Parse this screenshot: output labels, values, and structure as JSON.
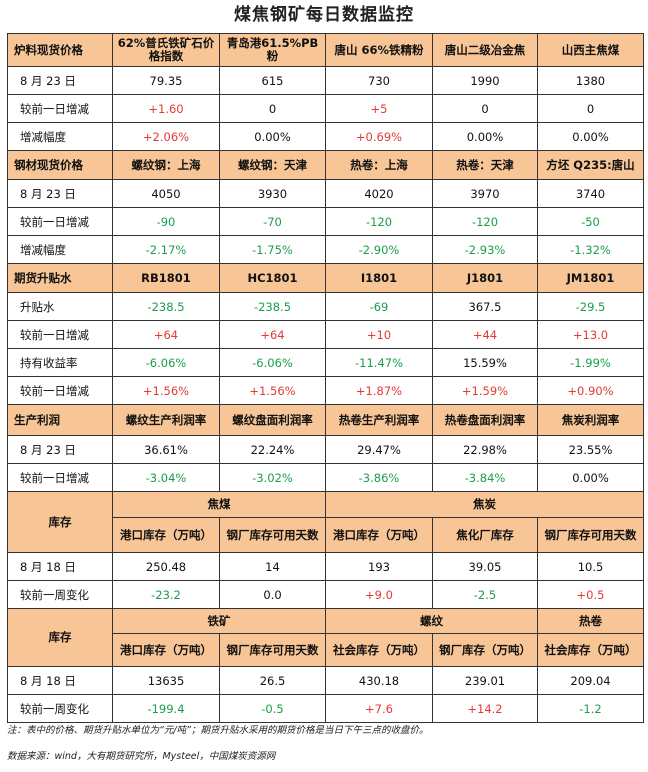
{
  "title": "煤焦钢矿每日数据监控",
  "s1": {
    "header": [
      "炉料现货价格",
      "62%普氏铁矿石价格指数",
      "青岛港61.5%PB粉",
      "唐山 66%铁精粉",
      "唐山二级冶金焦",
      "山西主焦煤"
    ],
    "rows": [
      {
        "label": "8 月 23 日",
        "values": [
          "79.35",
          "615",
          "730",
          "1990",
          "1380"
        ]
      },
      {
        "label": "较前一日增减",
        "values": [
          "+1.60",
          "0",
          "+5",
          "0",
          "0"
        ]
      },
      {
        "label": "增减幅度",
        "values": [
          "+2.06%",
          "0.00%",
          "+0.69%",
          "0.00%",
          "0.00%"
        ]
      }
    ]
  },
  "s2": {
    "header": [
      "钢材现货价格",
      "螺纹钢：上海",
      "螺纹钢：天津",
      "热卷：上海",
      "热卷：天津",
      "方坯 Q235:唐山"
    ],
    "rows": [
      {
        "label": "8 月 23 日",
        "values": [
          "4050",
          "3930",
          "4020",
          "3970",
          "3740"
        ]
      },
      {
        "label": "较前一日增减",
        "values": [
          "-90",
          "-70",
          "-120",
          "-120",
          "-50"
        ]
      },
      {
        "label": "增减幅度",
        "values": [
          "-2.17%",
          "-1.75%",
          "-2.90%",
          "-2.93%",
          "-1.32%"
        ]
      }
    ]
  },
  "s3": {
    "header": [
      "期货升贴水",
      "RB1801",
      "HC1801",
      "I1801",
      "J1801",
      "JM1801"
    ],
    "rows": [
      {
        "label": "升贴水",
        "values": [
          "-238.5",
          "-238.5",
          "-69",
          "367.5",
          "-29.5"
        ]
      },
      {
        "label": "较前一日增减",
        "values": [
          "+64",
          "+64",
          "+10",
          "+44",
          "+13.0"
        ]
      },
      {
        "label": "持有收益率",
        "values": [
          "-6.06%",
          "-6.06%",
          "-11.47%",
          "15.59%",
          "-1.99%"
        ]
      },
      {
        "label": "较前一日增减",
        "values": [
          "+1.56%",
          "+1.56%",
          "+1.87%",
          "+1.59%",
          "+0.90%"
        ]
      }
    ]
  },
  "s4": {
    "header": [
      "生产利润",
      "螺纹生产利润率",
      "螺纹盘面利润率",
      "热卷生产利润率",
      "热卷盘面利润率",
      "焦炭利润率"
    ],
    "rows": [
      {
        "label": "8 月 23 日",
        "values": [
          "36.61%",
          "22.24%",
          "29.47%",
          "22.98%",
          "23.55%"
        ]
      },
      {
        "label": "较前一日增减",
        "values": [
          "-3.04%",
          "-3.02%",
          "-3.86%",
          "-3.84%",
          "0.00%"
        ]
      }
    ]
  },
  "s5": {
    "label": "库存",
    "group1": "焦煤",
    "group2": "焦炭",
    "sub": [
      "港口库存（万吨）",
      "钢厂库存可用天数",
      "港口库存（万吨）",
      "焦化厂库存",
      "钢厂库存可用天数"
    ],
    "rows": [
      {
        "label": "8 月 18 日",
        "values": [
          "250.48",
          "14",
          "193",
          "39.05",
          "10.5"
        ]
      },
      {
        "label": "较前一周变化",
        "values": [
          "-23.2",
          "0.0",
          "+9.0",
          "-2.5",
          "+0.5"
        ]
      }
    ]
  },
  "s6": {
    "label": "库存",
    "group1": "铁矿",
    "group2": "螺纹",
    "group3": "热卷",
    "sub": [
      "港口库存（万吨）",
      "钢厂库存可用天数",
      "社会库存（万吨）",
      "钢厂库存（万吨）",
      "社会库存（万吨）"
    ],
    "rows": [
      {
        "label": "8 月 18 日",
        "values": [
          "13635",
          "26.5",
          "430.18",
          "239.01",
          "209.04"
        ]
      },
      {
        "label": "较前一周变化",
        "values": [
          "-199.4",
          "-0.5",
          "+7.6",
          "+14.2",
          "-1.2"
        ]
      }
    ]
  },
  "notes": {
    "note": "注：表中的价格、期货升贴水单位为“元/吨”；期货升贴水采用的期货价格是当日下午三点的收盘价。",
    "source": "数据来源：wind，大有期货研究所，Mysteel，中国煤炭资源网"
  },
  "colors": {
    "header_bg": "#f7c596",
    "up": "#e53935",
    "down": "#1a9e4a"
  }
}
